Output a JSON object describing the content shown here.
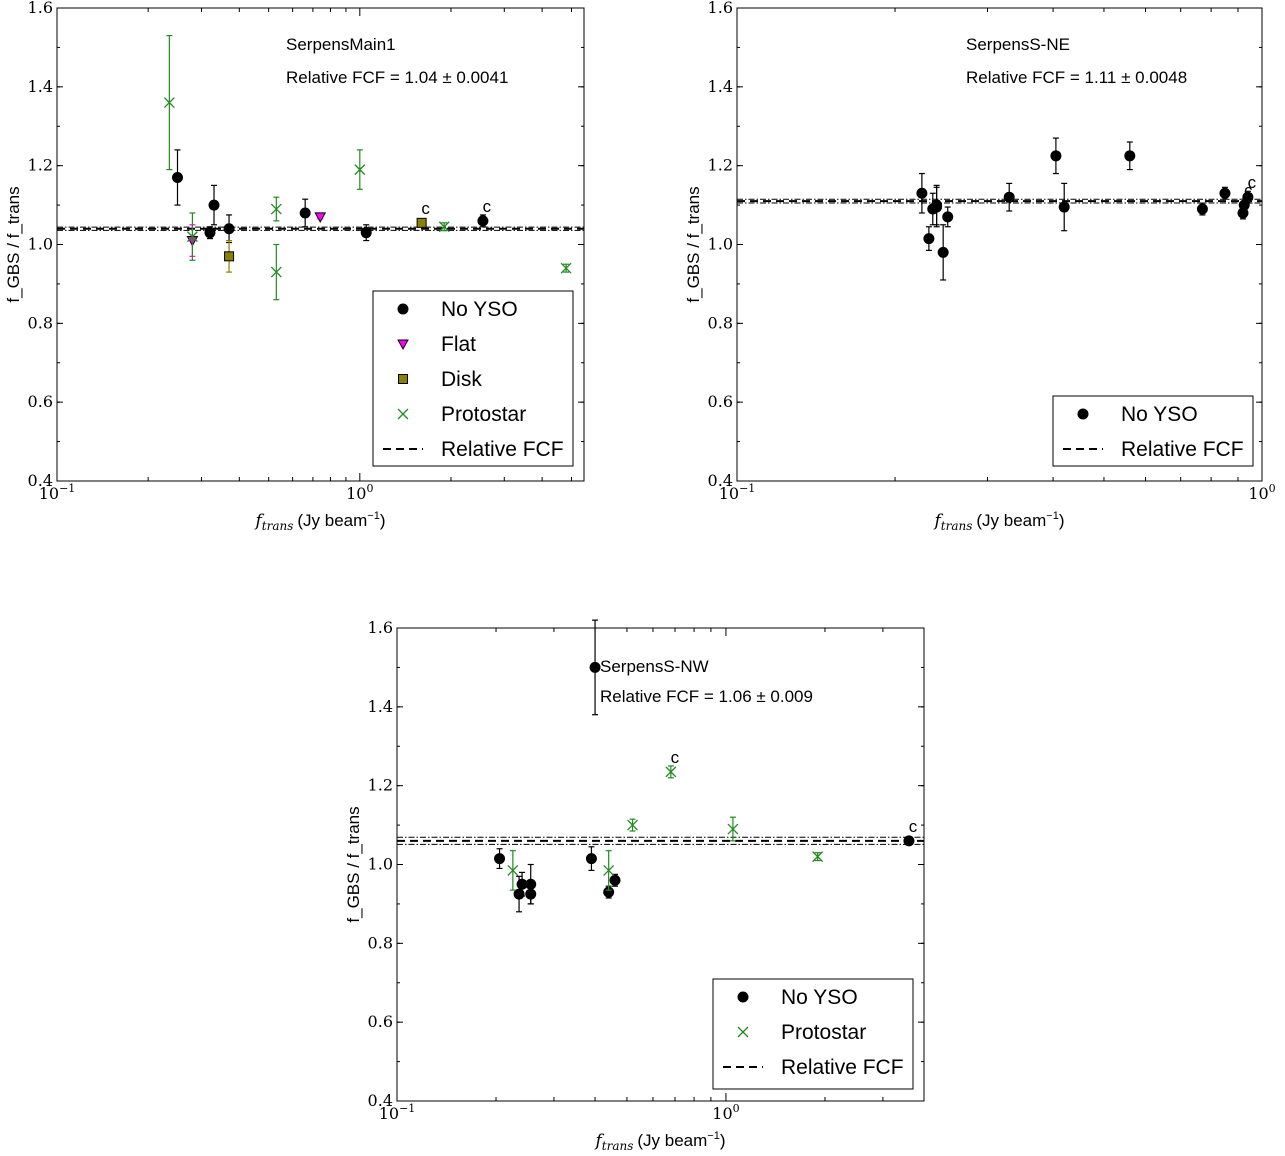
{
  "chart_data": [
    {
      "type": "scatter",
      "title": "SerpensMain1",
      "annotation": "Relative FCF = 1.04 ± 0.0041",
      "xlabel_var": "f_trans",
      "xlabel_var_sub": "trans",
      "xlabel_unit": "(Jy beam",
      "ylabel": "f_GBS / f_trans",
      "xscale": "log",
      "xlim": [
        0.1,
        5.5
      ],
      "ylim": [
        0.4,
        1.6
      ],
      "yticks": [
        "0.4",
        "0.6",
        "0.8",
        "1.0",
        "1.2",
        "1.4",
        "1.6"
      ],
      "xticks": [
        {
          "base": "10",
          "exp": "−1",
          "value": 0.1
        },
        {
          "base": "10",
          "exp": "0",
          "value": 1.0
        }
      ],
      "fcf": 1.04,
      "fcf_err": 0.0041,
      "legend_position": "lower-right",
      "series": [
        {
          "name": "No YSO",
          "marker": "circle",
          "color": "#000000",
          "x": [
            0.25,
            0.32,
            0.33,
            0.37,
            0.66,
            1.05,
            2.55
          ],
          "y": [
            1.17,
            1.03,
            1.1,
            1.04,
            1.08,
            1.03,
            1.06
          ],
          "err": [
            0.07,
            0.015,
            0.05,
            0.035,
            0.035,
            0.02,
            0.015
          ],
          "c_flags": [
            false,
            false,
            false,
            false,
            false,
            false,
            true
          ]
        },
        {
          "name": "Flat",
          "marker": "triangle-down",
          "color": "#ff00ff",
          "x": [
            0.28,
            0.74
          ],
          "y": [
            1.01,
            1.07
          ],
          "err": [
            0.04,
            0.005
          ],
          "c_flags": [
            false,
            false
          ]
        },
        {
          "name": "Disk",
          "marker": "square",
          "color": "#8b8000",
          "x": [
            0.37,
            1.6
          ],
          "y": [
            0.97,
            1.055
          ],
          "err": [
            0.04,
            0.005
          ],
          "c_flags": [
            false,
            true
          ]
        },
        {
          "name": "Protostar",
          "marker": "x",
          "color": "#228b22",
          "x": [
            0.235,
            0.28,
            0.53,
            0.53,
            1.0,
            1.9,
            4.8
          ],
          "y": [
            1.36,
            1.02,
            1.09,
            0.93,
            1.19,
            1.045,
            0.94
          ],
          "err": [
            0.17,
            0.06,
            0.03,
            0.07,
            0.05,
            0.01,
            0.01
          ],
          "c_flags": [
            false,
            false,
            false,
            false,
            false,
            false,
            false
          ]
        }
      ],
      "fcf_label": "Relative FCF",
      "c_label": "c"
    },
    {
      "type": "scatter",
      "title": "SerpensS-NE",
      "annotation": "Relative FCF = 1.11 ± 0.0048",
      "xlabel_var": "f_trans",
      "xlabel_var_sub": "trans",
      "xlabel_unit": "(Jy beam",
      "ylabel": "f_GBS / f_trans",
      "xscale": "log",
      "xlim": [
        0.1,
        1.0
      ],
      "ylim": [
        0.4,
        1.6
      ],
      "yticks": [
        "0.4",
        "0.6",
        "0.8",
        "1.0",
        "1.2",
        "1.4",
        "1.6"
      ],
      "xticks": [
        {
          "base": "10",
          "exp": "−1",
          "value": 0.1
        },
        {
          "base": "10",
          "exp": "0",
          "value": 1.0
        }
      ],
      "fcf": 1.11,
      "fcf_err": 0.0048,
      "legend_position": "lower-right",
      "series": [
        {
          "name": "No YSO",
          "marker": "circle",
          "color": "#000000",
          "x": [
            0.225,
            0.232,
            0.236,
            0.24,
            0.24,
            0.247,
            0.252,
            0.33,
            0.405,
            0.42,
            0.56,
            0.77,
            0.85,
            0.92,
            0.925,
            0.94
          ],
          "y": [
            1.13,
            1.015,
            1.09,
            1.095,
            1.1,
            0.98,
            1.07,
            1.12,
            1.225,
            1.095,
            1.225,
            1.09,
            1.13,
            1.08,
            1.1,
            1.12
          ],
          "err": [
            0.05,
            0.03,
            0.04,
            0.05,
            0.05,
            0.07,
            0.025,
            0.035,
            0.045,
            0.06,
            0.035,
            0.015,
            0.015,
            0.015,
            0.015,
            0.015
          ],
          "c_flags": [
            false,
            false,
            false,
            false,
            false,
            false,
            false,
            false,
            false,
            false,
            false,
            false,
            false,
            false,
            true,
            true
          ]
        }
      ],
      "fcf_label": "Relative FCF",
      "c_label": "c"
    },
    {
      "type": "scatter",
      "title": "SerpensS-NW",
      "annotation": "Relative FCF = 1.06 ± 0.009",
      "xlabel_var": "f_trans",
      "xlabel_var_sub": "trans",
      "xlabel_unit": "(Jy beam",
      "ylabel": "f_GBS / f_trans",
      "xscale": "log",
      "xlim": [
        0.1,
        4.0
      ],
      "ylim": [
        0.4,
        1.6
      ],
      "yticks": [
        "0.4",
        "0.6",
        "0.8",
        "1.0",
        "1.2",
        "1.4",
        "1.6"
      ],
      "xticks": [
        {
          "base": "10",
          "exp": "−1",
          "value": 0.1
        },
        {
          "base": "10",
          "exp": "0",
          "value": 1.0
        }
      ],
      "fcf": 1.06,
      "fcf_err": 0.009,
      "legend_position": "lower-right",
      "series": [
        {
          "name": "No YSO",
          "marker": "circle",
          "color": "#000000",
          "x": [
            0.205,
            0.235,
            0.24,
            0.255,
            0.255,
            0.39,
            0.4,
            0.44,
            0.46,
            3.6
          ],
          "y": [
            1.015,
            0.925,
            0.95,
            0.925,
            0.95,
            1.015,
            1.5,
            0.93,
            0.96,
            1.06
          ],
          "err": [
            0.025,
            0.045,
            0.03,
            0.025,
            0.05,
            0.03,
            0.12,
            0.015,
            0.015,
            0.005
          ],
          "c_flags": [
            false,
            false,
            false,
            false,
            false,
            false,
            false,
            false,
            false,
            true
          ]
        },
        {
          "name": "Protostar",
          "marker": "x",
          "color": "#228b22",
          "x": [
            0.225,
            0.44,
            0.52,
            0.68,
            1.05,
            1.9
          ],
          "y": [
            0.985,
            0.985,
            1.1,
            1.235,
            1.09,
            1.02
          ],
          "err": [
            0.05,
            0.05,
            0.015,
            0.015,
            0.03,
            0.01
          ],
          "c_flags": [
            false,
            false,
            false,
            true,
            false,
            false
          ]
        }
      ],
      "fcf_label": "Relative FCF",
      "c_label": "c"
    }
  ]
}
